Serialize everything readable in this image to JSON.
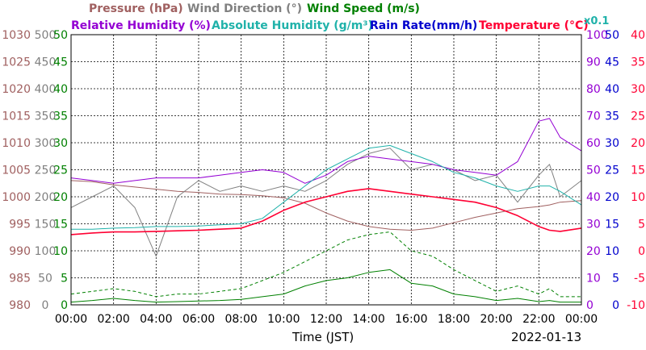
{
  "chart_data": {
    "type": "line",
    "title": "",
    "legend": [
      {
        "label": "Pressure (hPa)",
        "color": "#a06060"
      },
      {
        "label": "Wind Direction (°)",
        "color": "#808080"
      },
      {
        "label": "Wind Speed (m/s)",
        "color": "#008000"
      },
      {
        "label": "Relative Humidity (%)",
        "color": "#9400d3"
      },
      {
        "label": "Absolute Humidity (g/m³)",
        "color": "#20b2aa"
      },
      {
        "label": "Rain Rate(mm/h)",
        "color": "#0000cd"
      },
      {
        "label": "Temperature (°C)",
        "color": "#ff0033"
      }
    ],
    "multiplier_note": "x0.1",
    "xlabel": "Time (JST)",
    "date_label": "2022-01-13",
    "x_ticks": [
      "00:00",
      "02:00",
      "04:00",
      "06:00",
      "08:00",
      "10:00",
      "12:00",
      "14:00",
      "16:00",
      "18:00",
      "20:00",
      "22:00",
      "00:00"
    ],
    "axes": {
      "pressure": {
        "min": 980,
        "max": 1030,
        "ticks": [
          "1030",
          "1025",
          "1020",
          "1015",
          "1010",
          "1005",
          "1000",
          "995",
          "990",
          "985",
          "980"
        ],
        "color": "#a06060"
      },
      "wind_direction": {
        "min": 0,
        "max": 500,
        "ticks": [
          "500",
          "450",
          "400",
          "350",
          "300",
          "250",
          "200",
          "150",
          "100",
          "50",
          "0"
        ],
        "color": "#808080"
      },
      "wind_speed": {
        "min": 0,
        "max": 50,
        "ticks": [
          "50",
          "45",
          "40",
          "35",
          "30",
          "25",
          "20",
          "15",
          "10",
          "5",
          "0"
        ],
        "color": "#008000"
      },
      "relative_humidity": {
        "min": 0,
        "max": 100,
        "ticks": [
          "100",
          "90",
          "80",
          "70",
          "60",
          "50",
          "40",
          "30",
          "20",
          "10",
          "0"
        ],
        "color": "#9400d3"
      },
      "rain_rate": {
        "min": 0,
        "max": 50,
        "ticks": [
          "50",
          "45",
          "40",
          "35",
          "30",
          "25",
          "20",
          "15",
          "10",
          "5",
          "0"
        ],
        "color": "#0000cd"
      },
      "temperature": {
        "min": -10,
        "max": 40,
        "ticks": [
          "40",
          "35",
          "30",
          "25",
          "20",
          "15",
          "10",
          "5",
          "0",
          "-5",
          "-10"
        ],
        "color": "#ff0033"
      }
    },
    "grid": true,
    "x_hours": [
      0,
      1,
      2,
      3,
      4,
      5,
      6,
      7,
      8,
      9,
      10,
      11,
      12,
      13,
      14,
      15,
      16,
      17,
      18,
      19,
      20,
      21,
      22,
      22.5,
      23,
      24
    ],
    "series": [
      {
        "key": "pressure",
        "axis": "pressure",
        "color": "#a06060",
        "width": 1,
        "values": [
          1003.0,
          1002.8,
          1002.2,
          1001.8,
          1001.4,
          1001.0,
          1000.8,
          1000.5,
          1000.4,
          1000.2,
          999.8,
          998.8,
          997.0,
          995.5,
          994.5,
          994.0,
          993.8,
          994.2,
          995.2,
          996.2,
          997.0,
          997.8,
          998.2,
          998.5,
          999.0,
          999.3
        ]
      },
      {
        "key": "wind_direction",
        "axis": "wind_direction",
        "color": "#808080",
        "width": 1,
        "values": [
          180,
          200,
          220,
          180,
          90,
          200,
          230,
          210,
          220,
          210,
          220,
          210,
          230,
          260,
          280,
          290,
          250,
          260,
          250,
          230,
          240,
          190,
          240,
          260,
          200,
          230
        ]
      },
      {
        "key": "wind_speed",
        "axis": "wind_speed",
        "color": "#008000",
        "width": 1,
        "values": [
          0.5,
          0.8,
          1.2,
          0.8,
          0.5,
          0.6,
          0.7,
          0.8,
          1.0,
          1.5,
          2.0,
          3.5,
          4.5,
          5.0,
          6.0,
          6.5,
          4.0,
          3.5,
          2.0,
          1.5,
          0.8,
          1.2,
          0.6,
          0.8,
          0.5,
          0.5
        ]
      },
      {
        "key": "wind_gust",
        "axis": "wind_speed",
        "color": "#008000",
        "width": 1,
        "dashed": true,
        "values": [
          2.0,
          2.5,
          3.0,
          2.5,
          1.5,
          2.0,
          2.0,
          2.5,
          3.0,
          4.5,
          6.0,
          8.0,
          10.0,
          12.0,
          13.0,
          13.5,
          10.0,
          9.0,
          6.5,
          4.5,
          2.5,
          3.5,
          2.0,
          3.0,
          1.5,
          1.5
        ]
      },
      {
        "key": "relative_humidity",
        "axis": "relative_humidity",
        "color": "#9400d3",
        "width": 1,
        "values": [
          47,
          46,
          45,
          46,
          47,
          47,
          47,
          48,
          49,
          50,
          49,
          45,
          48,
          53,
          55,
          54,
          53,
          52,
          50,
          49,
          48,
          53,
          68,
          69,
          62,
          57
        ]
      },
      {
        "key": "absolute_humidity",
        "axis": "temperature",
        "color": "#20b2aa",
        "width": 1,
        "values": [
          4.0,
          4.0,
          4.2,
          4.3,
          4.5,
          4.5,
          4.6,
          4.8,
          5.0,
          6.0,
          9.0,
          12.0,
          15.0,
          17.0,
          19.0,
          19.5,
          18.0,
          16.5,
          14.5,
          13.5,
          12.0,
          11.0,
          12.0,
          12.0,
          11.0,
          8.5
        ]
      },
      {
        "key": "rain_rate",
        "axis": "rain_rate",
        "color": "#0000cd",
        "width": 1,
        "values": [
          0,
          0,
          0,
          0,
          0,
          0,
          0,
          0,
          0,
          0,
          0,
          0,
          0,
          0,
          0,
          0,
          0,
          0,
          0,
          0,
          0,
          0,
          0,
          0,
          0,
          0
        ]
      },
      {
        "key": "temperature",
        "axis": "temperature",
        "color": "#ff0033",
        "width": 1.6,
        "values": [
          3.0,
          3.3,
          3.5,
          3.5,
          3.6,
          3.7,
          3.8,
          4.0,
          4.2,
          5.5,
          7.5,
          9.0,
          10.0,
          11.0,
          11.5,
          11.0,
          10.5,
          10.0,
          9.5,
          9.0,
          8.0,
          6.5,
          4.5,
          3.8,
          3.6,
          4.2
        ]
      }
    ]
  }
}
